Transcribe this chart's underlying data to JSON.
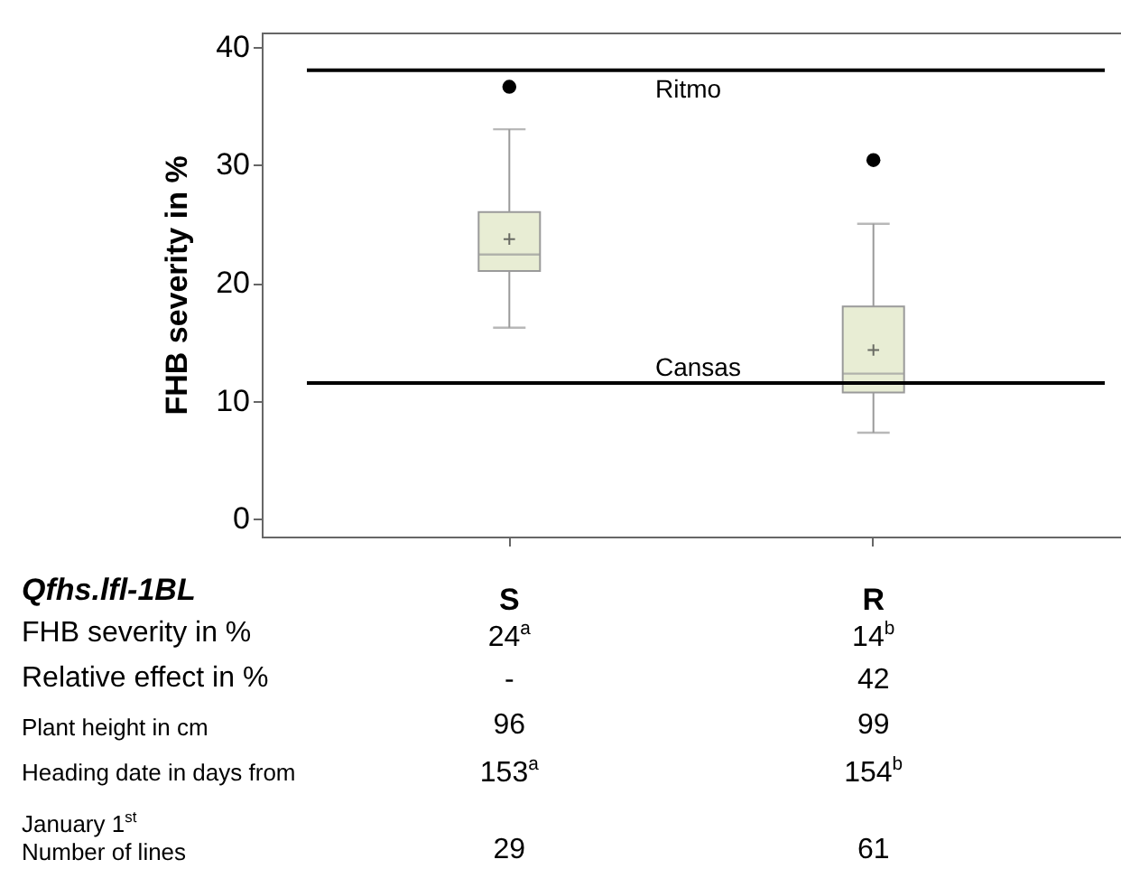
{
  "chart_data": {
    "type": "box",
    "ylabel": "FHB severity in %",
    "xlabel": "Qfhs.lfl-1BL",
    "categories": [
      "S",
      "R"
    ],
    "series": [
      {
        "color": "#e8edd4",
        "boxes": [
          {
            "low": 16.2,
            "q1": 21,
            "median": 22.4,
            "q3": 26,
            "high": 33,
            "mean": 23.7,
            "outliers": [
              36.6
            ]
          },
          {
            "low": 7.3,
            "q1": 10.7,
            "median": 12.3,
            "q3": 18,
            "high": 25,
            "mean": 14.3,
            "outliers": [
              30.4
            ]
          }
        ]
      }
    ],
    "ylim": [
      -1.5,
      41.2
    ],
    "yticks": [
      0,
      10,
      20,
      30,
      40
    ],
    "grid": false,
    "ref_lines": [
      {
        "axis": "y",
        "value": 38,
        "label": "Ritmo",
        "color": "#000000"
      },
      {
        "axis": "y",
        "value": 11.5,
        "label": "Cansas",
        "color": "#000000"
      }
    ],
    "annotations": [
      "FHB severity in %",
      "24$^{a}$",
      "14$^{b}$",
      "Relative effect in %",
      "-",
      "42",
      "Plant height in cm",
      "96",
      "99",
      "Heading date in days from January 1$^{st}$",
      "153$^{a}$",
      "154$^{b}$",
      "Number of lines",
      "29",
      "61"
    ]
  }
}
